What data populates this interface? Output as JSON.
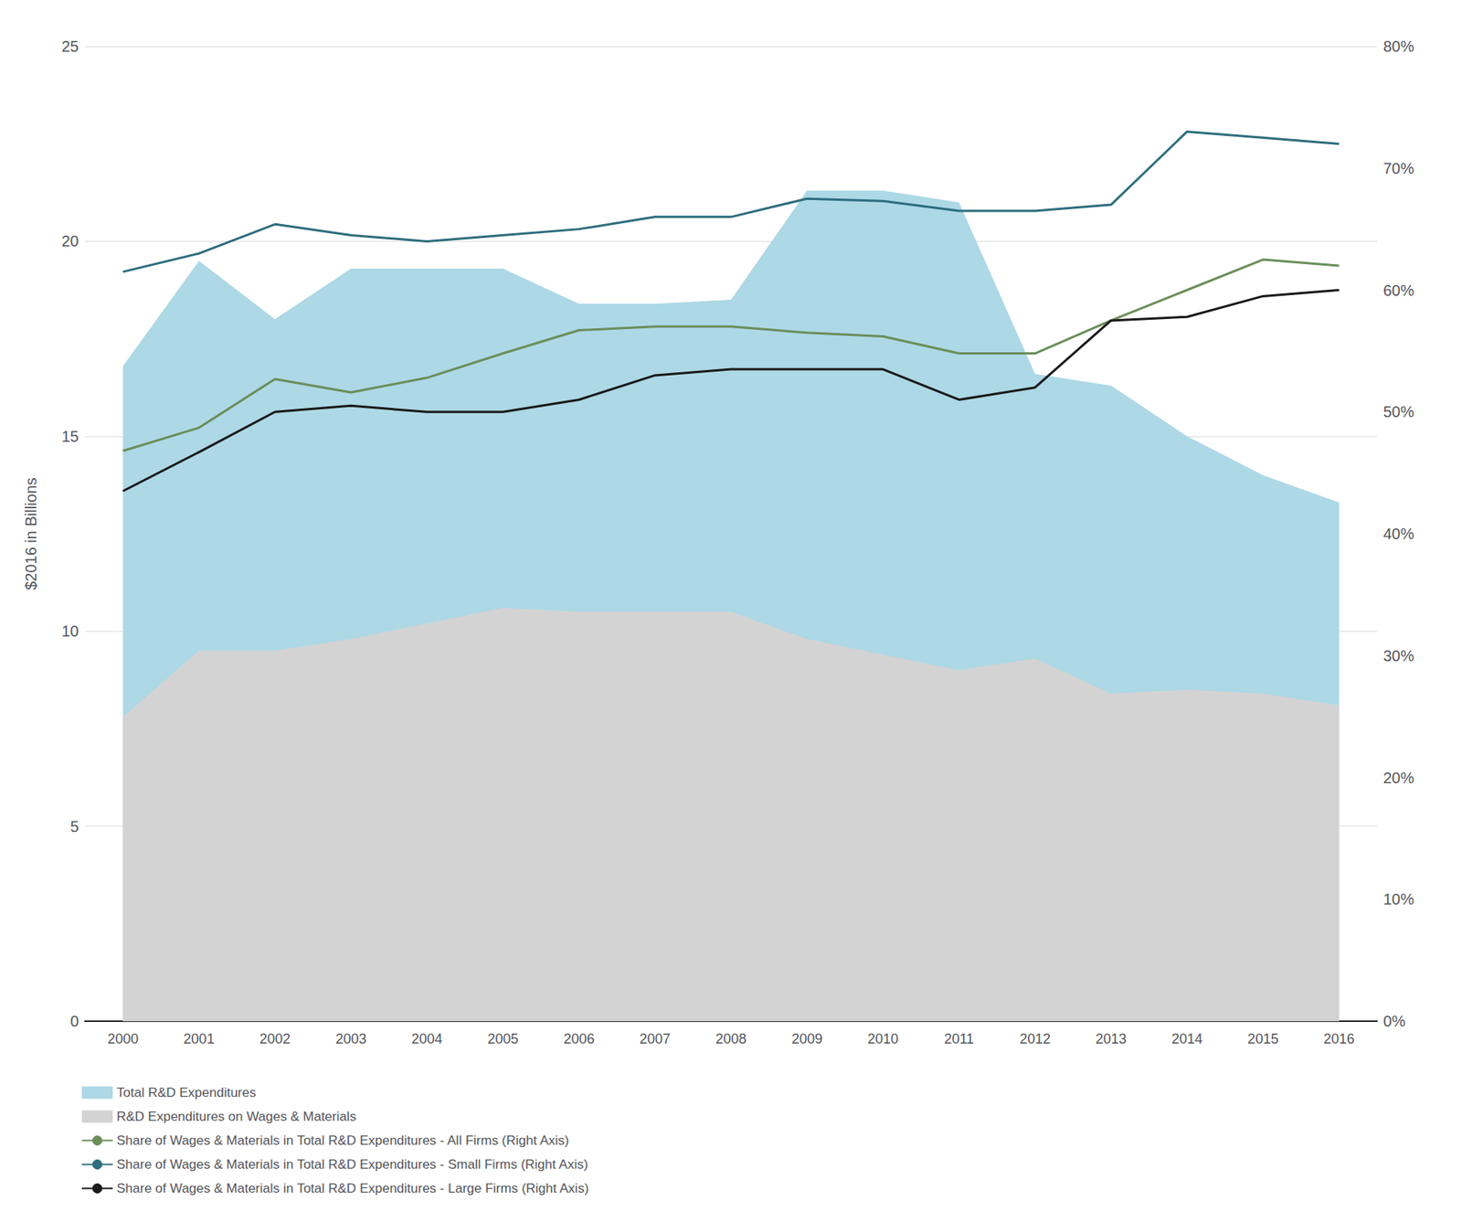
{
  "chart_data": {
    "type": "line",
    "x": [
      2000,
      2001,
      2002,
      2003,
      2004,
      2005,
      2006,
      2007,
      2008,
      2009,
      2010,
      2011,
      2012,
      2013,
      2014,
      2015,
      2016
    ],
    "xlim": [
      1999.5,
      2016.5
    ],
    "xticks": [
      2000,
      2001,
      2002,
      2003,
      2004,
      2005,
      2006,
      2007,
      2008,
      2009,
      2010,
      2011,
      2012,
      2013,
      2014,
      2015,
      2016
    ],
    "ylabel": "$2016 in Billions",
    "ylim": [
      0,
      25
    ],
    "yticks": [
      0,
      5,
      10,
      15,
      20,
      25
    ],
    "y2lim": [
      0,
      0.8
    ],
    "y2ticks": [
      {
        "value": 0.0,
        "label": "0%"
      },
      {
        "value": 0.1,
        "label": "10%"
      },
      {
        "value": 0.2,
        "label": "20%"
      },
      {
        "value": 0.3,
        "label": "30%"
      },
      {
        "value": 0.4,
        "label": "40%"
      },
      {
        "value": 0.5,
        "label": "50%"
      },
      {
        "value": 0.6,
        "label": "60%"
      },
      {
        "value": 0.7,
        "label": "70%"
      },
      {
        "value": 0.8,
        "label": "80%"
      }
    ],
    "grid": true,
    "legend": "bottom left",
    "series": [
      {
        "name": "Total R&D Expenditures",
        "type": "area",
        "color": "#add8e6",
        "values": [
          16.8,
          19.5,
          18.0,
          19.3,
          19.3,
          19.3,
          18.4,
          18.4,
          18.5,
          21.3,
          21.3,
          21.0,
          16.6,
          16.3,
          15.0,
          14.0,
          13.3
        ]
      },
      {
        "name": "R&D Expenditures on Wages & Materials",
        "type": "area",
        "color": "#d3d3d3",
        "values": [
          7.8,
          9.5,
          9.5,
          9.8,
          10.2,
          10.6,
          10.5,
          10.5,
          10.5,
          9.8,
          9.4,
          9.0,
          9.3,
          8.4,
          8.5,
          8.4,
          8.1
        ]
      },
      {
        "name": "Share of Wages & Materials in Total R&D Expenditures - All Firms (Right Axis)",
        "type": "line",
        "axis": "y2",
        "color": "#6b8e5a",
        "values": [
          0.468,
          0.487,
          0.527,
          0.516,
          0.528,
          0.548,
          0.567,
          0.57,
          0.57,
          0.565,
          0.562,
          0.548,
          0.548,
          0.575,
          0.6,
          0.625,
          0.62
        ]
      },
      {
        "name": "Share of Wages & Materials in Total R&D Expenditures - Small Firms (Right Axis)",
        "type": "line",
        "axis": "y2",
        "color": "#2e6e7e",
        "values": [
          0.615,
          0.63,
          0.654,
          0.645,
          0.64,
          0.645,
          0.65,
          0.66,
          0.66,
          0.675,
          0.673,
          0.665,
          0.665,
          0.67,
          0.73,
          0.725,
          0.72
        ]
      },
      {
        "name": "Share of Wages & Materials in Total R&D Expenditures - Large Firms (Right Axis)",
        "type": "line",
        "axis": "y2",
        "color": "#1a1a1a",
        "values": [
          0.435,
          0.467,
          0.5,
          0.505,
          0.5,
          0.5,
          0.51,
          0.53,
          0.535,
          0.535,
          0.535,
          0.51,
          0.52,
          0.575,
          0.578,
          0.595,
          0.6
        ]
      }
    ]
  }
}
